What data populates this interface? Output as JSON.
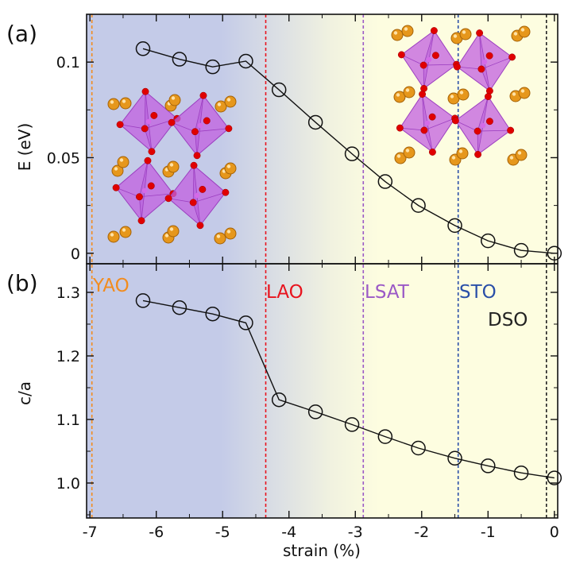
{
  "colors": {
    "bg_left": "#c4cbe8",
    "bg_mid": "#f1f2e0",
    "bg_right": "#fdfde0",
    "yao": "#f28c1e",
    "lao": "#e8141e",
    "lsat": "#9b59c6",
    "sto": "#2a4fa8",
    "dso": "#222222",
    "octahedron": "#c15fe0",
    "oxygen": "#e00000",
    "cation": "#e6971c"
  },
  "chart_data": [
    {
      "panel": "(a)",
      "type": "line",
      "ylabel": "E (eV)",
      "xlabel": "",
      "ylim": [
        -0.0055,
        0.125
      ],
      "yticks": [
        0,
        0.05,
        0.1
      ],
      "ytick_labels": [
        "0",
        "0.05",
        "0.1"
      ],
      "x": [
        -6.2,
        -5.65,
        -5.15,
        -4.65,
        -4.15,
        -3.6,
        -3.05,
        -2.55,
        -2.05,
        -1.5,
        -1.0,
        -0.5,
        0.0
      ],
      "y": [
        0.107,
        0.1015,
        0.0975,
        0.1005,
        0.0855,
        0.0685,
        0.052,
        0.0375,
        0.025,
        0.0145,
        0.0065,
        0.0015,
        0.0
      ]
    },
    {
      "panel": "(b)",
      "type": "line",
      "ylabel": "c/a",
      "xlabel": "strain (%)",
      "ylim": [
        0.945,
        1.345
      ],
      "yticks": [
        1.0,
        1.1,
        1.2,
        1.3
      ],
      "ytick_labels": [
        "1.0",
        "1.1",
        "1.2",
        "1.3"
      ],
      "x": [
        -6.2,
        -5.65,
        -5.15,
        -4.65,
        -4.15,
        -3.6,
        -3.05,
        -2.55,
        -2.05,
        -1.5,
        -1.0,
        -0.5,
        0.0
      ],
      "y": [
        1.287,
        1.276,
        1.266,
        1.252,
        1.131,
        1.112,
        1.092,
        1.073,
        1.055,
        1.039,
        1.027,
        1.016,
        1.008
      ]
    }
  ],
  "x_axis": {
    "xlim": [
      -7.05,
      0.05
    ],
    "ticks": [
      -7,
      -6,
      -5,
      -4,
      -3,
      -2,
      -1,
      0
    ],
    "tick_labels": [
      "-7",
      "-6",
      "-5",
      "-4",
      "-3",
      "-2",
      "-1",
      "0"
    ]
  },
  "substrates": [
    {
      "name": "YAO",
      "strain": -6.97,
      "color": "#f28c1e"
    },
    {
      "name": "LAO",
      "strain": -4.35,
      "color": "#e8141e"
    },
    {
      "name": "LSAT",
      "strain": -2.88,
      "color": "#9b59c6"
    },
    {
      "name": "STO",
      "strain": -1.45,
      "color": "#2a4fa8"
    },
    {
      "name": "DSO",
      "strain": -0.12,
      "color": "#222222"
    }
  ]
}
